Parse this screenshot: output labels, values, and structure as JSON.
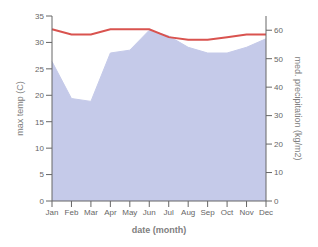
{
  "chart_data": {
    "type": "line",
    "categories": [
      "Jan",
      "Feb",
      "Mar",
      "Apr",
      "May",
      "Jun",
      "Jul",
      "Aug",
      "Sep",
      "Oct",
      "Nov",
      "Dec"
    ],
    "xlabel": "date (month)",
    "ylabel": "max temp (C)",
    "y2label": "med. precipitation (kg/m2)",
    "ylim": [
      0,
      35
    ],
    "yticks": [
      0,
      5,
      10,
      15,
      20,
      25,
      30,
      35
    ],
    "y2lim": [
      0,
      65
    ],
    "y2ticks": [
      0,
      10,
      20,
      30,
      40,
      50,
      60
    ],
    "grid": false,
    "series": [
      {
        "type": "area",
        "axis": "y2",
        "color": "#c5cae9",
        "values": [
          49,
          36,
          35,
          52,
          53,
          60,
          58,
          54,
          52,
          52,
          54,
          57
        ]
      },
      {
        "type": "line",
        "color": "#d9534f",
        "values": [
          32.5,
          31.5,
          31.5,
          32.5,
          32.5,
          32.5,
          31.0,
          30.5,
          30.5,
          31.0,
          31.5,
          31.5
        ]
      }
    ]
  }
}
